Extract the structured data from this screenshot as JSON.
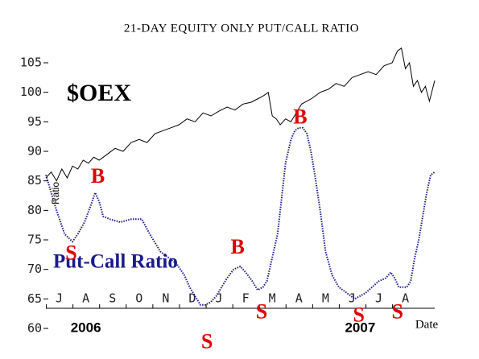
{
  "chart_data": {
    "type": "line",
    "title": "21-DAY EQUITY ONLY PUT/CALL RATIO",
    "ylabel": "Ratio",
    "xlabel": "Date",
    "xlim": [
      0,
      14.6
    ],
    "ylim": [
      60,
      108
    ],
    "yticks": [
      60,
      65,
      70,
      75,
      80,
      85,
      90,
      95,
      100,
      105
    ],
    "xticks": [
      {
        "value": 0.5,
        "label": "J"
      },
      {
        "value": 1.5,
        "label": "A"
      },
      {
        "value": 2.5,
        "label": "S"
      },
      {
        "value": 3.5,
        "label": "O"
      },
      {
        "value": 4.5,
        "label": "N"
      },
      {
        "value": 5.5,
        "label": "D"
      },
      {
        "value": 6.5,
        "label": "J"
      },
      {
        "value": 7.5,
        "label": "F"
      },
      {
        "value": 8.5,
        "label": "M"
      },
      {
        "value": 9.5,
        "label": "A"
      },
      {
        "value": 10.5,
        "label": "M"
      },
      {
        "value": 11.5,
        "label": "J"
      },
      {
        "value": 12.5,
        "label": "J"
      },
      {
        "value": 13.5,
        "label": "A"
      }
    ],
    "years": [
      {
        "value": 1.5,
        "label": "2006"
      },
      {
        "value": 11.8,
        "label": "2007"
      }
    ],
    "series": [
      {
        "name": "$OEX",
        "color": "#000000",
        "style": "solid",
        "x": [
          0,
          0.2,
          0.4,
          0.6,
          0.8,
          1.0,
          1.2,
          1.4,
          1.6,
          1.8,
          2.0,
          2.3,
          2.6,
          2.9,
          3.2,
          3.5,
          3.8,
          4.1,
          4.4,
          4.7,
          5.0,
          5.3,
          5.6,
          5.9,
          6.2,
          6.5,
          6.8,
          7.1,
          7.4,
          7.7,
          8.0,
          8.2,
          8.35,
          8.5,
          8.65,
          8.8,
          9.0,
          9.2,
          9.4,
          9.6,
          9.8,
          10.0,
          10.3,
          10.6,
          10.9,
          11.2,
          11.5,
          11.8,
          12.1,
          12.4,
          12.7,
          13.0,
          13.2,
          13.35,
          13.5,
          13.65,
          13.8,
          13.95,
          14.1,
          14.25,
          14.4,
          14.6
        ],
        "values": [
          85.5,
          86.5,
          85,
          87,
          85.5,
          87.5,
          87,
          88.5,
          88,
          89,
          88.5,
          89.5,
          90.5,
          90,
          91.5,
          92,
          91.5,
          93,
          93.5,
          94,
          94.5,
          95.5,
          95,
          96.5,
          96,
          96.8,
          97.5,
          97,
          98,
          98.3,
          99,
          99.5,
          100,
          96,
          95.5,
          94.5,
          95.5,
          95,
          96.5,
          98,
          98.5,
          99,
          100,
          100.5,
          101.5,
          101,
          102.5,
          103,
          103.5,
          103,
          104.5,
          105,
          107,
          107.5,
          104,
          105,
          101,
          102,
          100,
          101,
          98.5,
          102
        ]
      },
      {
        "name": "Put-Call Ratio",
        "color": "#1a1a8c",
        "style": "dotted",
        "x": [
          0,
          0.2,
          0.4,
          0.7,
          1.0,
          1.2,
          1.45,
          1.7,
          1.85,
          2.0,
          2.15,
          2.4,
          2.8,
          3.2,
          3.6,
          3.9,
          4.3,
          4.6,
          4.9,
          5.2,
          5.4,
          5.6,
          5.8,
          6.0,
          6.2,
          6.4,
          6.6,
          6.8,
          7.05,
          7.3,
          7.5,
          7.75,
          7.95,
          8.15,
          8.3,
          8.5,
          8.7,
          8.85,
          9.0,
          9.2,
          9.35,
          9.5,
          9.65,
          9.8,
          9.95,
          10.1,
          10.3,
          10.5,
          10.75,
          11.0,
          11.3,
          11.6,
          11.8,
          12.0,
          12.25,
          12.5,
          12.75,
          12.95,
          13.1,
          13.25,
          13.4,
          13.55,
          13.7,
          13.85,
          14.0,
          14.15,
          14.3,
          14.45,
          14.6
        ],
        "values": [
          86,
          83,
          80,
          76,
          74.7,
          76,
          78,
          81,
          83,
          81.5,
          79,
          78.5,
          78,
          78.5,
          78.5,
          76,
          73,
          72,
          71,
          69,
          67,
          65.5,
          64,
          64,
          64.5,
          65.5,
          67,
          68.5,
          70,
          70.5,
          69.5,
          68,
          66.5,
          67,
          68,
          72,
          76,
          82,
          88,
          92,
          93.5,
          94,
          94,
          93,
          90,
          86,
          80,
          73,
          69,
          67,
          66,
          65,
          65.5,
          66,
          67,
          68,
          68.5,
          69.5,
          68.5,
          67,
          67,
          67,
          68,
          72,
          75,
          79,
          83,
          86,
          86.5
        ]
      }
    ],
    "signals": [
      {
        "label": "S",
        "x": 0.95,
        "y": 72.5
      },
      {
        "label": "B",
        "x": 1.95,
        "y": 85.5
      },
      {
        "label": "S",
        "x": 6.05,
        "y": 57.5
      },
      {
        "label": "B",
        "x": 7.2,
        "y": 73.5
      },
      {
        "label": "S",
        "x": 8.1,
        "y": 62.5
      },
      {
        "label": "B",
        "x": 9.55,
        "y": 95.5
      },
      {
        "label": "S",
        "x": 11.75,
        "y": 62
      },
      {
        "label": "S",
        "x": 13.2,
        "y": 62.5
      }
    ],
    "signal_color": "#e00000"
  }
}
